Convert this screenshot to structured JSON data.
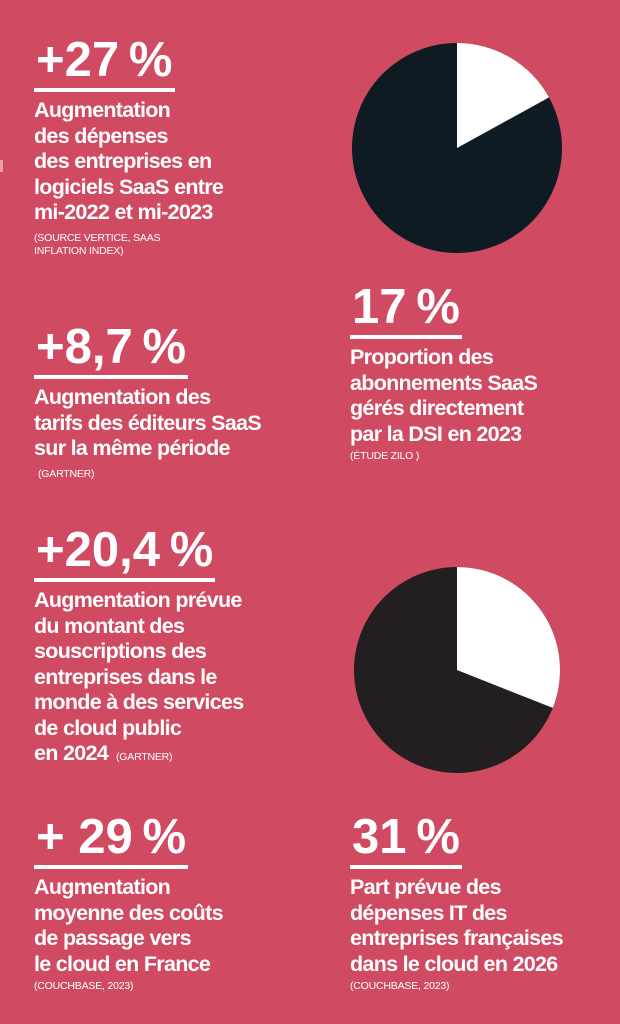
{
  "stats": [
    {
      "value": "+27 %",
      "lines": [
        "Augmentation",
        "des dépenses",
        "des entreprises en",
        "logiciels SaaS entre",
        "mi-2022 et mi-2023"
      ],
      "source": [
        "(SOURCE VERTICE, SAAS",
        "INFLATION INDEX)"
      ]
    },
    {
      "value": "+8,7 %",
      "lines": [
        "Augmentation des",
        "tarifs des éditeurs SaaS",
        "sur la même période"
      ],
      "source": [
        "(GARTNER)"
      ]
    },
    {
      "value": "17 %",
      "lines": [
        "Proportion des",
        "abonnements SaaS",
        "gérés directement",
        "par la DSI en 2023"
      ],
      "source": [
        "(ÉTUDE ZILO )"
      ]
    },
    {
      "value": "+20,4 %",
      "lines": [
        "Augmentation prévue",
        "du montant des",
        "souscriptions des",
        "entreprises dans le",
        "monde à des services",
        "de cloud public",
        "en 2024"
      ],
      "source": [
        "(GARTNER)"
      ]
    },
    {
      "value": "+ 29 %",
      "lines": [
        "Augmentation",
        "moyenne des coûts",
        "de passage vers",
        "le cloud en France"
      ],
      "source": [
        "(COUCHBASE, 2023)"
      ]
    },
    {
      "value": "31 %",
      "lines": [
        "Part prévue des",
        "dépenses IT des",
        "entreprises françaises",
        "dans le cloud en 2026"
      ],
      "source": [
        "(COUCHBASE, 2023)"
      ]
    }
  ],
  "pies": [
    {
      "percent": 17,
      "highlight_color": "#ffffff",
      "rest_color": "#0f1b23"
    },
    {
      "percent": 31,
      "highlight_color": "#ffffff",
      "rest_color": "#231f20"
    }
  ],
  "colors": {
    "background": "#d04a62"
  }
}
